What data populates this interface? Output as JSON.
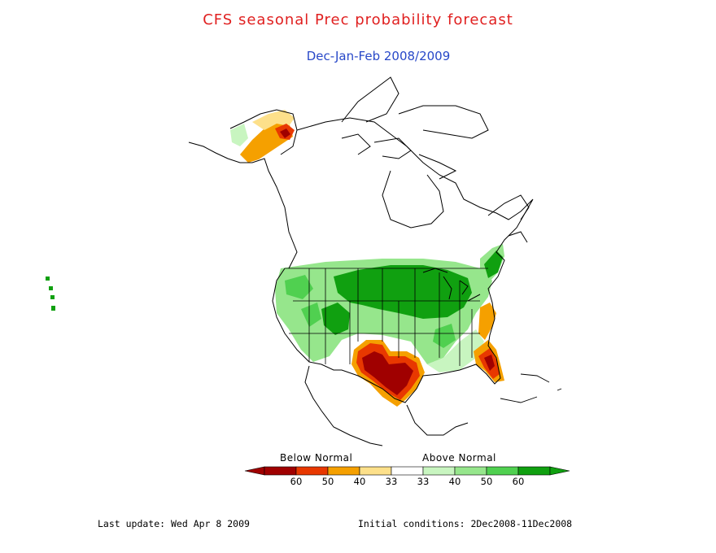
{
  "title": "CFS seasonal Prec probability forecast",
  "subtitle": "Dec-Jan-Feb 2008/2009",
  "legend": {
    "below_label": "Below Normal",
    "above_label": "Above Normal",
    "ticks": [
      "60",
      "50",
      "40",
      "33",
      "33",
      "40",
      "50",
      "60"
    ],
    "bins": [
      {
        "category": "below",
        "range": ">60",
        "color": "#a00000"
      },
      {
        "category": "below",
        "range": "50-60",
        "color": "#e83800"
      },
      {
        "category": "below",
        "range": "40-50",
        "color": "#f5a000"
      },
      {
        "category": "below",
        "range": "33-40",
        "color": "#fde08a"
      },
      {
        "category": "normal",
        "range": "<33",
        "color": "#ffffff"
      },
      {
        "category": "above",
        "range": "33-40",
        "color": "#c8f5c0"
      },
      {
        "category": "above",
        "range": "40-50",
        "color": "#96e68c"
      },
      {
        "category": "above",
        "range": "50-60",
        "color": "#50d050"
      },
      {
        "category": "above",
        "range": ">60",
        "color": "#10a010"
      }
    ]
  },
  "footer": {
    "last_update": "Last update: Wed Apr 8 2009",
    "initial_conditions": "Initial conditions: 2Dec2008-11Dec2008"
  }
}
